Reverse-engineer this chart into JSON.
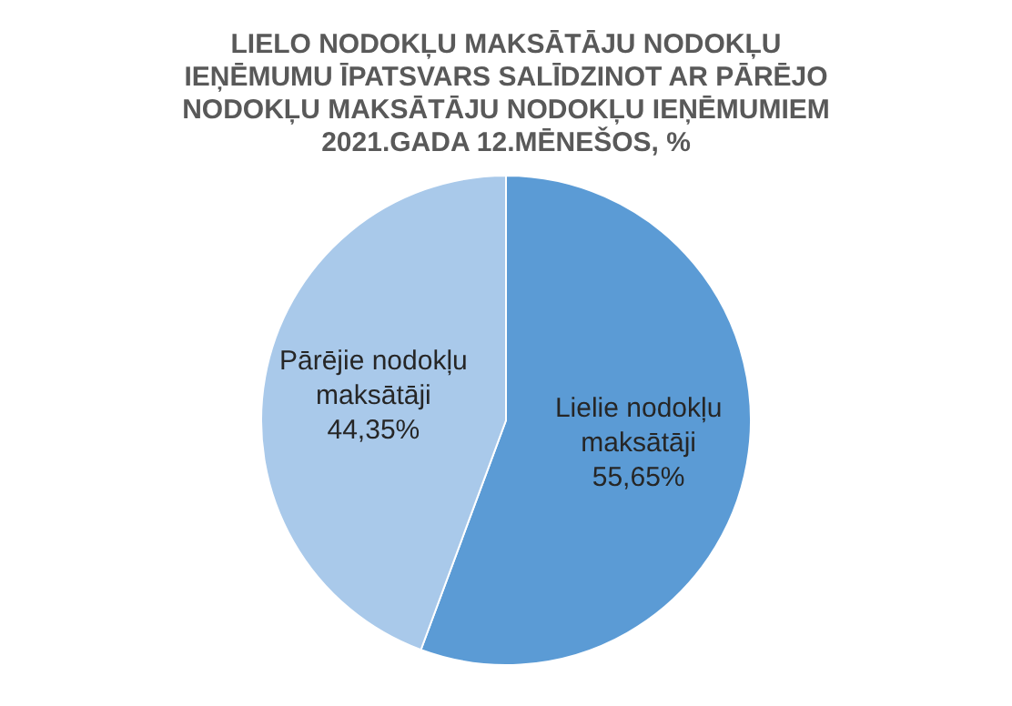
{
  "chart_data": {
    "type": "pie",
    "title": "LIELO NODOKĻU MAKSĀTĀJU NODOKĻU IEŅĒMUMU ĪPATSVARS SALĪDZINOT AR PĀRĒJO NODOKĻU MAKSĀTĀJU NODOKĻU IEŅĒMUMIEM 2021.GADA 12.MĒNEŠOS, %",
    "categories": [
      "Lielie nodokļu maksātāji",
      "Pārējie nodokļu maksātāji"
    ],
    "values": [
      55.65,
      44.35
    ],
    "value_labels": [
      "55,65%",
      "44,35%"
    ],
    "colors": [
      "#5b9bd5",
      "#a9c9ea"
    ],
    "legend": false
  }
}
